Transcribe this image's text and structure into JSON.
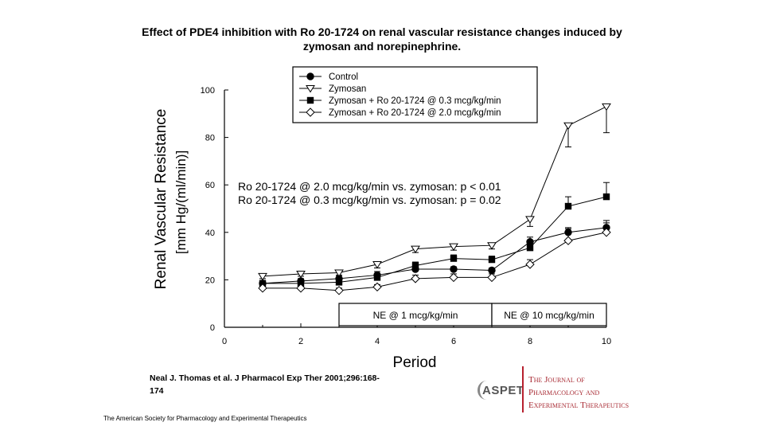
{
  "slide": {
    "title_line1": "Effect of PDE4 inhibition with Ro 20-1724 on renal vascular resistance changes induced by",
    "title_line2": "zymosan and norepinephrine.",
    "citation_line1": "Neal J. Thomas et al. J Pharmacol Exp Ther 2001;296:168-",
    "citation_line2": "174",
    "footer": "The American Society for Pharmacology and Experimental Therapeutics",
    "aspet_logo": "ASPET",
    "journal_line1": "The Journal of",
    "journal_line2": "Pharmacology and",
    "journal_line3": "Experimental Therapeutics"
  },
  "chart_data": {
    "type": "line",
    "title": "",
    "xlabel": "Period",
    "ylabel_line1": "Renal Vascular Resistance",
    "ylabel_line2": "[mm Hg/(ml/min)]",
    "xlim": [
      0,
      10
    ],
    "ylim": [
      0,
      100
    ],
    "x_ticks": [
      0,
      2,
      4,
      6,
      8,
      10
    ],
    "y_ticks": [
      0,
      20,
      40,
      60,
      80,
      100
    ],
    "grid": false,
    "legend_position": "top-right",
    "x": [
      1,
      2,
      3,
      4,
      5,
      6,
      7,
      8,
      9,
      10
    ],
    "series": [
      {
        "name": "Control",
        "marker": "filled-circle",
        "values": [
          18.5,
          19.5,
          20.5,
          22,
          24.5,
          24.5,
          24,
          36,
          40,
          42
        ],
        "error": [
          1,
          1,
          1,
          1.5,
          1,
          1,
          1,
          2,
          2,
          2
        ]
      },
      {
        "name": "Zymosan",
        "marker": "open-triangle-down",
        "values": [
          21.5,
          22.5,
          23,
          26.5,
          33,
          34,
          34.5,
          45.5,
          85,
          93
        ],
        "error": [
          1,
          1,
          1,
          1.5,
          1.5,
          1.5,
          1.5,
          3,
          9,
          11
        ]
      },
      {
        "name": "Zymosan + Ro 20-1724 @ 0.3 mcg/kg/min",
        "marker": "filled-square",
        "values": [
          18.5,
          18.5,
          19,
          21,
          26,
          29,
          28.5,
          33.5,
          51,
          55
        ],
        "error": [
          1,
          1,
          1,
          1,
          1.5,
          1.5,
          1.5,
          2,
          4,
          6
        ]
      },
      {
        "name": "Zymosan + Ro 20-1724 @ 2.0 mcg/kg/min",
        "marker": "open-diamond",
        "values": [
          16.5,
          16.5,
          15.5,
          17,
          20.5,
          21,
          21,
          26.5,
          36.5,
          40
        ],
        "error": [
          1,
          1,
          1,
          1,
          1.5,
          1.5,
          1.5,
          2,
          5,
          5
        ]
      }
    ],
    "annotation_line1": "Ro 20-1724 @ 2.0 mcg/kg/min vs. zymosan: p < 0.01",
    "annotation_line2": "Ro 20-1724 @ 0.3 mcg/kg/min vs. zymosan: p = 0.02",
    "period_labels": [
      {
        "label": "NE @ 1 mcg/kg/min",
        "x_start": 3,
        "x_end": 7
      },
      {
        "label": "NE @ 10 mcg/kg/min",
        "x_start": 7,
        "x_end": 10
      }
    ]
  }
}
